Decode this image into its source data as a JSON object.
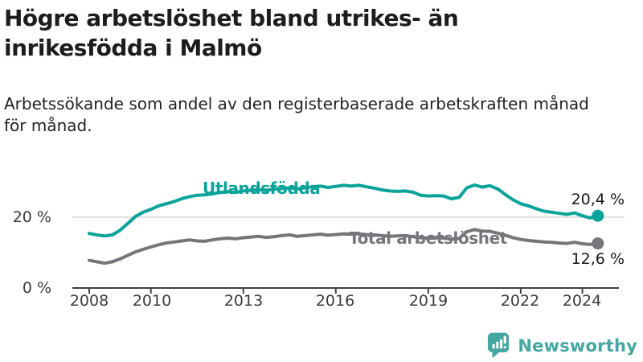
{
  "header": {
    "title_lines": [
      "Högre arbetslöshet bland utrikes- än",
      "inrikesfödda i Malmö"
    ],
    "subtitle_lines": [
      "Arbetssökande som andel av den registerbaserade arbetskraften månad",
      "för månad."
    ]
  },
  "chart_data": {
    "type": "line",
    "unit": "%",
    "title": "Högre arbetslöshet bland utrikes- än inrikesfödda i Malmö",
    "subtitle": "Arbetssökande som andel av den registerbaserade arbetskraften månad för månad.",
    "x_tick_labels": [
      "2008",
      "2010",
      "2013",
      "2016",
      "2019",
      "2022",
      "2024"
    ],
    "x_tick_years": [
      2008,
      2010,
      2013,
      2016,
      2019,
      2022,
      2024
    ],
    "y_tick_labels": [
      "0 %",
      "20 %"
    ],
    "y_tick_values": [
      0,
      20
    ],
    "y_gridlines": [
      20
    ],
    "ylim": [
      0,
      33
    ],
    "xlim": [
      2008,
      2024.5
    ],
    "grid_color": "#e1e1e1",
    "axis_color": "#404040",
    "legend_position": "inline-labels",
    "series": [
      {
        "name": "Utlandsfödda",
        "color": "#0aa399",
        "end_label": "20,4 %",
        "end_value": 20.4,
        "points": [
          [
            2008.0,
            15.4
          ],
          [
            2008.25,
            15.0
          ],
          [
            2008.5,
            14.7
          ],
          [
            2008.75,
            15.0
          ],
          [
            2009.0,
            16.3
          ],
          [
            2009.25,
            18.2
          ],
          [
            2009.5,
            20.2
          ],
          [
            2009.75,
            21.4
          ],
          [
            2010.0,
            22.2
          ],
          [
            2010.25,
            23.2
          ],
          [
            2010.5,
            23.8
          ],
          [
            2010.75,
            24.4
          ],
          [
            2011.0,
            25.2
          ],
          [
            2011.25,
            25.8
          ],
          [
            2011.5,
            26.2
          ],
          [
            2011.75,
            26.3
          ],
          [
            2012.0,
            26.6
          ],
          [
            2012.25,
            27.0
          ],
          [
            2012.5,
            27.2
          ],
          [
            2012.75,
            27.0
          ],
          [
            2013.0,
            27.4
          ],
          [
            2013.25,
            27.6
          ],
          [
            2013.5,
            27.8
          ],
          [
            2013.75,
            27.6
          ],
          [
            2014.0,
            27.9
          ],
          [
            2014.25,
            28.1
          ],
          [
            2014.5,
            28.3
          ],
          [
            2014.75,
            28.0
          ],
          [
            2015.0,
            28.3
          ],
          [
            2015.25,
            28.6
          ],
          [
            2015.5,
            28.8
          ],
          [
            2015.75,
            28.4
          ],
          [
            2016.0,
            28.7
          ],
          [
            2016.25,
            29.0
          ],
          [
            2016.5,
            28.8
          ],
          [
            2016.75,
            29.0
          ],
          [
            2017.0,
            28.6
          ],
          [
            2017.25,
            28.2
          ],
          [
            2017.5,
            27.7
          ],
          [
            2017.75,
            27.4
          ],
          [
            2018.0,
            27.3
          ],
          [
            2018.25,
            27.4
          ],
          [
            2018.5,
            27.1
          ],
          [
            2018.75,
            26.2
          ],
          [
            2019.0,
            26.0
          ],
          [
            2019.25,
            26.1
          ],
          [
            2019.5,
            26.0
          ],
          [
            2019.75,
            25.2
          ],
          [
            2020.0,
            25.6
          ],
          [
            2020.25,
            28.3
          ],
          [
            2020.5,
            29.1
          ],
          [
            2020.75,
            28.5
          ],
          [
            2021.0,
            28.9
          ],
          [
            2021.25,
            28.0
          ],
          [
            2021.5,
            26.4
          ],
          [
            2021.75,
            24.9
          ],
          [
            2022.0,
            23.8
          ],
          [
            2022.25,
            23.2
          ],
          [
            2022.5,
            22.4
          ],
          [
            2022.75,
            21.7
          ],
          [
            2023.0,
            21.4
          ],
          [
            2023.25,
            21.1
          ],
          [
            2023.5,
            20.8
          ],
          [
            2023.75,
            21.2
          ],
          [
            2024.0,
            20.4
          ],
          [
            2024.25,
            19.8
          ],
          [
            2024.5,
            20.4
          ]
        ]
      },
      {
        "name": "Total arbetslöshet",
        "color": "#76757b",
        "end_label": "12,6 %",
        "end_value": 12.6,
        "points": [
          [
            2008.0,
            7.8
          ],
          [
            2008.25,
            7.4
          ],
          [
            2008.5,
            7.0
          ],
          [
            2008.75,
            7.4
          ],
          [
            2009.0,
            8.2
          ],
          [
            2009.25,
            9.2
          ],
          [
            2009.5,
            10.2
          ],
          [
            2009.75,
            10.9
          ],
          [
            2010.0,
            11.6
          ],
          [
            2010.25,
            12.2
          ],
          [
            2010.5,
            12.7
          ],
          [
            2010.75,
            13.0
          ],
          [
            2011.0,
            13.3
          ],
          [
            2011.25,
            13.6
          ],
          [
            2011.5,
            13.3
          ],
          [
            2011.75,
            13.2
          ],
          [
            2012.0,
            13.6
          ],
          [
            2012.25,
            13.9
          ],
          [
            2012.5,
            14.1
          ],
          [
            2012.75,
            13.9
          ],
          [
            2013.0,
            14.2
          ],
          [
            2013.25,
            14.4
          ],
          [
            2013.5,
            14.6
          ],
          [
            2013.75,
            14.3
          ],
          [
            2014.0,
            14.5
          ],
          [
            2014.25,
            14.8
          ],
          [
            2014.5,
            15.0
          ],
          [
            2014.75,
            14.6
          ],
          [
            2015.0,
            14.8
          ],
          [
            2015.25,
            15.0
          ],
          [
            2015.5,
            15.2
          ],
          [
            2015.75,
            14.9
          ],
          [
            2016.0,
            15.1
          ],
          [
            2016.25,
            15.3
          ],
          [
            2016.5,
            15.2
          ],
          [
            2016.75,
            15.3
          ],
          [
            2017.0,
            15.1
          ],
          [
            2017.25,
            15.0
          ],
          [
            2017.5,
            14.8
          ],
          [
            2017.75,
            14.6
          ],
          [
            2018.0,
            14.7
          ],
          [
            2018.25,
            14.8
          ],
          [
            2018.5,
            14.5
          ],
          [
            2018.75,
            14.2
          ],
          [
            2019.0,
            14.1
          ],
          [
            2019.25,
            14.2
          ],
          [
            2019.5,
            14.1
          ],
          [
            2019.75,
            13.8
          ],
          [
            2020.0,
            14.0
          ],
          [
            2020.25,
            15.9
          ],
          [
            2020.5,
            16.5
          ],
          [
            2020.75,
            16.1
          ],
          [
            2021.0,
            16.0
          ],
          [
            2021.25,
            15.5
          ],
          [
            2021.5,
            14.9
          ],
          [
            2021.75,
            14.2
          ],
          [
            2022.0,
            13.7
          ],
          [
            2022.25,
            13.4
          ],
          [
            2022.5,
            13.2
          ],
          [
            2022.75,
            13.0
          ],
          [
            2023.0,
            12.9
          ],
          [
            2023.25,
            12.7
          ],
          [
            2023.5,
            12.6
          ],
          [
            2023.75,
            12.9
          ],
          [
            2024.0,
            12.5
          ],
          [
            2024.25,
            12.3
          ],
          [
            2024.5,
            12.6
          ]
        ]
      }
    ]
  },
  "footer": {
    "brand": "Newsworthy",
    "brand_color": "#45a6a2"
  }
}
